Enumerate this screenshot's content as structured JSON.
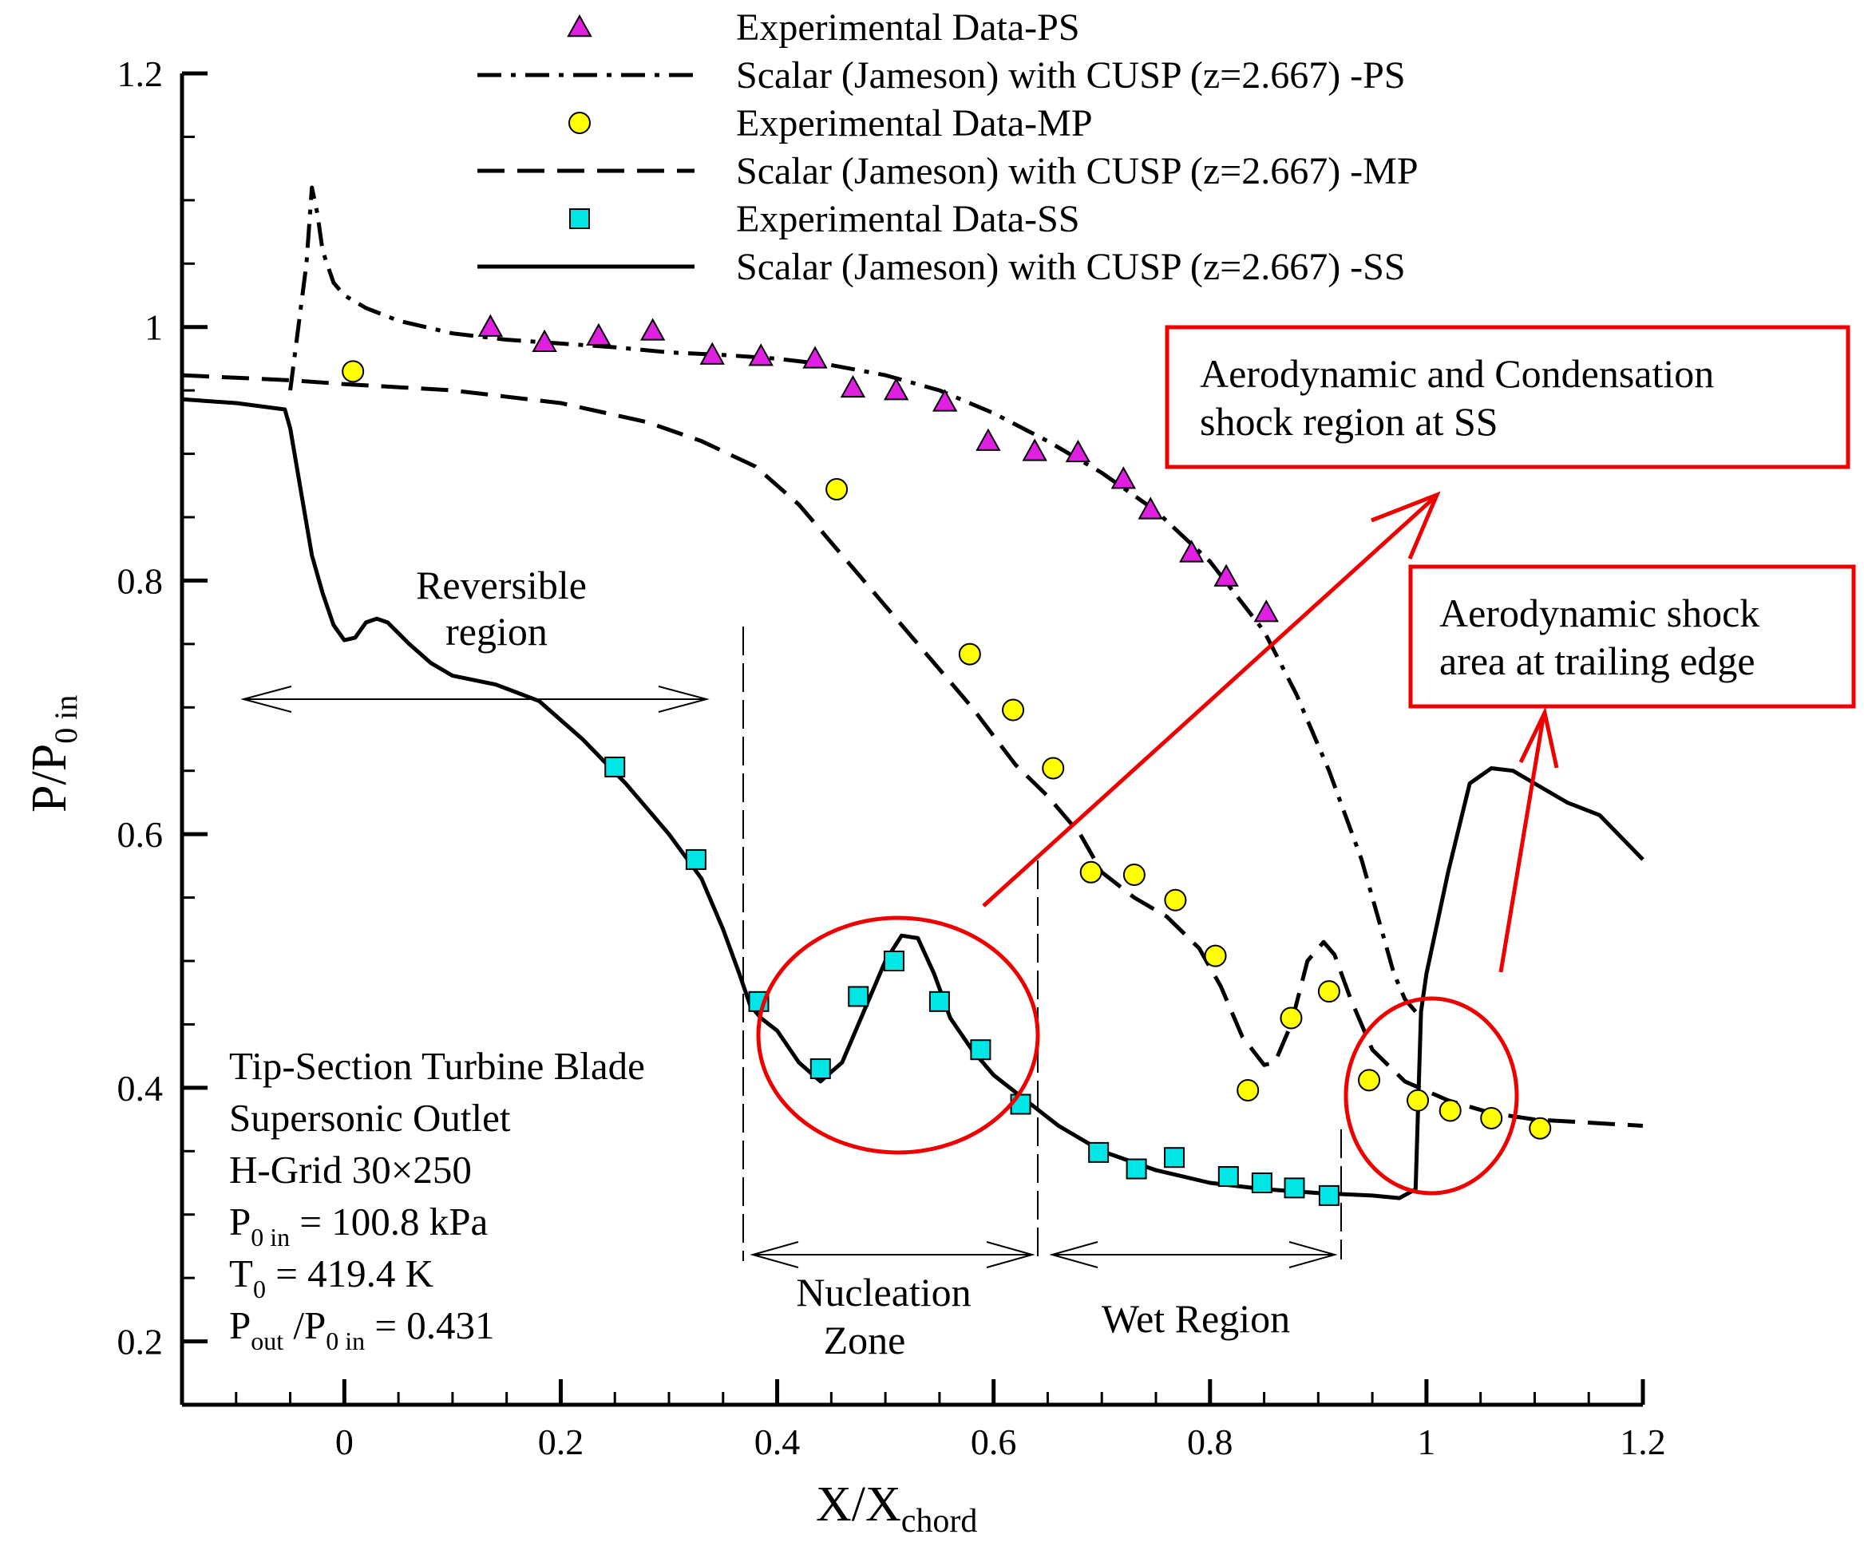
{
  "chart_data": {
    "type": "line",
    "xlabel": "X/X",
    "xlabel_sub": "chord",
    "ylabel": "P/P",
    "ylabel_sub": "0 in",
    "xlim": [
      -0.15,
      1.2
    ],
    "ylim": [
      0.15,
      1.2
    ],
    "xticks": [
      0,
      0.2,
      0.4,
      0.6,
      0.8,
      1,
      1.2
    ],
    "yticks": [
      0.2,
      0.4,
      0.6,
      0.8,
      1,
      1.2
    ],
    "xtick_labels": [
      "0",
      "0.2",
      "0.4",
      "0.6",
      "0.8",
      "1",
      "1.2"
    ],
    "ytick_labels": [
      "0.2",
      "0.4",
      "0.6",
      "0.8",
      "1",
      "1.2"
    ],
    "series": [
      {
        "name": "Experimental Data-PS",
        "kind": "marker",
        "marker": "triangle",
        "color": "#e020e0",
        "x": [
          0.135,
          0.185,
          0.235,
          0.285,
          0.34,
          0.385,
          0.435,
          0.47,
          0.51,
          0.555,
          0.595,
          0.638,
          0.678,
          0.72,
          0.745,
          0.783,
          0.815,
          0.852
        ],
        "y": [
          1.0,
          0.988,
          0.993,
          0.997,
          0.978,
          0.977,
          0.975,
          0.952,
          0.95,
          0.941,
          0.91,
          0.902,
          0.901,
          0.88,
          0.856,
          0.822,
          0.803,
          0.775
        ]
      },
      {
        "name": "Scalar (Jameson) with CUSP (z=2.667) -PS",
        "kind": "line",
        "dash": "dashdot",
        "color": "#000000",
        "x": [
          -0.05,
          -0.035,
          -0.03,
          -0.025,
          -0.02,
          -0.01,
          0.0,
          0.02,
          0.05,
          0.1,
          0.15,
          0.2,
          0.25,
          0.3,
          0.35,
          0.4,
          0.45,
          0.5,
          0.55,
          0.6,
          0.65,
          0.7,
          0.75,
          0.8,
          0.85,
          0.88,
          0.91,
          0.94,
          0.96,
          0.97,
          0.98,
          0.99
        ],
        "y": [
          0.95,
          1.05,
          1.11,
          1.09,
          1.06,
          1.035,
          1.025,
          1.015,
          1.005,
          0.995,
          0.99,
          0.987,
          0.984,
          0.98,
          0.978,
          0.975,
          0.97,
          0.962,
          0.95,
          0.932,
          0.91,
          0.885,
          0.855,
          0.815,
          0.76,
          0.71,
          0.65,
          0.58,
          0.52,
          0.49,
          0.47,
          0.46
        ]
      },
      {
        "name": "Experimental Data-MP",
        "kind": "marker",
        "marker": "circle",
        "color": "#ffff00",
        "x": [
          0.008,
          0.455,
          0.578,
          0.618,
          0.655,
          0.69,
          0.73,
          0.768,
          0.805,
          0.835,
          0.875,
          0.91,
          0.947,
          0.992,
          1.022,
          1.06,
          1.105
        ],
        "y": [
          0.965,
          0.872,
          0.742,
          0.698,
          0.652,
          0.57,
          0.568,
          0.548,
          0.504,
          0.398,
          0.455,
          0.476,
          0.406,
          0.39,
          0.382,
          0.376,
          0.368
        ]
      },
      {
        "name": "Scalar (Jameson) with CUSP (z=2.667) -MP",
        "kind": "line",
        "dash": "dash",
        "color": "#000000",
        "x": [
          -0.15,
          -0.1,
          -0.05,
          0.0,
          0.1,
          0.2,
          0.28,
          0.33,
          0.38,
          0.42,
          0.46,
          0.5,
          0.54,
          0.58,
          0.62,
          0.65,
          0.68,
          0.7,
          0.73,
          0.76,
          0.79,
          0.81,
          0.83,
          0.85,
          0.86,
          0.875,
          0.89,
          0.905,
          0.915,
          0.93,
          0.95,
          0.98,
          1.02,
          1.06,
          1.1,
          1.2
        ],
        "y": [
          0.962,
          0.96,
          0.958,
          0.955,
          0.95,
          0.94,
          0.925,
          0.91,
          0.89,
          0.86,
          0.82,
          0.78,
          0.74,
          0.7,
          0.655,
          0.63,
          0.6,
          0.57,
          0.55,
          0.535,
          0.51,
          0.48,
          0.44,
          0.418,
          0.42,
          0.45,
          0.5,
          0.515,
          0.505,
          0.47,
          0.43,
          0.405,
          0.39,
          0.38,
          0.375,
          0.37
        ]
      },
      {
        "name": "Experimental Data-SS",
        "kind": "marker",
        "marker": "square",
        "color": "#00e5e5",
        "x": [
          0.25,
          0.325,
          0.383,
          0.44,
          0.475,
          0.508,
          0.55,
          0.588,
          0.625,
          0.697,
          0.732,
          0.767,
          0.817,
          0.848,
          0.878,
          0.91
        ],
        "y": [
          0.653,
          0.58,
          0.468,
          0.415,
          0.472,
          0.5,
          0.468,
          0.43,
          0.387,
          0.349,
          0.336,
          0.345,
          0.33,
          0.325,
          0.321,
          0.315
        ]
      },
      {
        "name": "Scalar (Jameson) with CUSP (z=2.667) -SS",
        "kind": "line",
        "dash": "solid",
        "color": "#000000",
        "x": [
          -0.15,
          -0.1,
          -0.055,
          -0.05,
          -0.04,
          -0.03,
          -0.02,
          -0.01,
          0.0,
          0.01,
          0.02,
          0.03,
          0.04,
          0.06,
          0.08,
          0.1,
          0.14,
          0.18,
          0.22,
          0.26,
          0.3,
          0.33,
          0.35,
          0.365,
          0.375,
          0.385,
          0.4,
          0.42,
          0.44,
          0.46,
          0.48,
          0.5,
          0.515,
          0.53,
          0.545,
          0.56,
          0.58,
          0.6,
          0.63,
          0.66,
          0.7,
          0.75,
          0.8,
          0.85,
          0.9,
          0.95,
          0.975,
          0.99,
          0.995,
          1.0,
          1.02,
          1.04,
          1.06,
          1.08,
          1.1,
          1.13,
          1.16,
          1.2
        ],
        "y": [
          0.943,
          0.94,
          0.935,
          0.92,
          0.87,
          0.82,
          0.79,
          0.765,
          0.753,
          0.755,
          0.767,
          0.77,
          0.767,
          0.75,
          0.735,
          0.725,
          0.718,
          0.705,
          0.675,
          0.64,
          0.6,
          0.565,
          0.525,
          0.49,
          0.465,
          0.455,
          0.445,
          0.42,
          0.405,
          0.42,
          0.46,
          0.5,
          0.52,
          0.518,
          0.49,
          0.455,
          0.43,
          0.41,
          0.39,
          0.37,
          0.35,
          0.335,
          0.325,
          0.32,
          0.317,
          0.315,
          0.313,
          0.32,
          0.46,
          0.49,
          0.57,
          0.64,
          0.652,
          0.65,
          0.64,
          0.625,
          0.615,
          0.58
        ]
      }
    ],
    "annotations": {
      "reversible_line1": "Reversible",
      "reversible_line2": "region",
      "nucleation_line1": "Nucleation",
      "nucleation_line2": "Zone",
      "wet_region": "Wet Region",
      "box1_line1": "Aerodynamic and Condensation",
      "box1_line2": "shock region at SS",
      "box2_line1": "Aerodynamic shock",
      "box2_line2": "area at trailing edge"
    },
    "info_text": {
      "line1": "Tip-Section Turbine Blade",
      "line2": "Supersonic Outlet",
      "line3": "H-Grid 30×250",
      "p0_label": "P",
      "p0_sub": "0 in",
      "p0_value": " = 100.8 kPa",
      "t0_label": "T",
      "t0_sub": "0",
      "t0_value": " = 419.4 K",
      "ratio_p": "P",
      "ratio_sub_out": "out",
      "ratio_slash": " /P",
      "ratio_sub_in": "0 in",
      "ratio_value": " = 0.431"
    },
    "annotation_color": "#ee0000"
  }
}
